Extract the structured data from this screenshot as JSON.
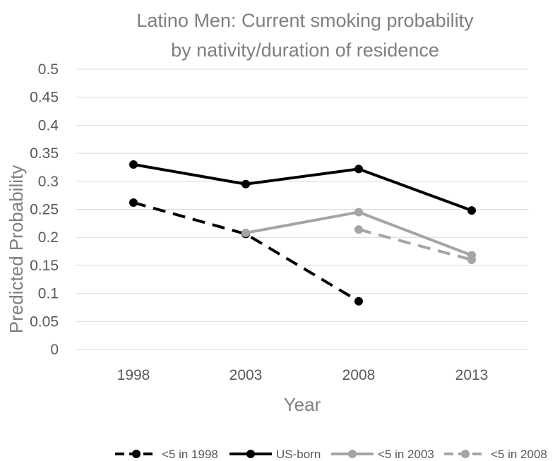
{
  "chart_data": {
    "type": "line",
    "title_line1": "Latino Men: Current smoking probability",
    "title_line2": "by nativity/duration of residence",
    "xlabel": "Year",
    "ylabel": "Predicted Probability",
    "categories": [
      "1998",
      "2003",
      "2008",
      "2013"
    ],
    "y_ticks": [
      "0",
      "0.05",
      "0.1",
      "0.15",
      "0.2",
      "0.25",
      "0.3",
      "0.35",
      "0.4",
      "0.45",
      "0.5"
    ],
    "ylim": [
      0,
      0.5
    ],
    "grid": true,
    "legend_position": "bottom",
    "series": [
      {
        "name": "<5 in 1998",
        "color": "#000000",
        "dash": true,
        "values": [
          0.262,
          0.206,
          0.086,
          null
        ]
      },
      {
        "name": "US-born",
        "color": "#000000",
        "dash": false,
        "values": [
          0.33,
          0.295,
          0.322,
          0.248
        ]
      },
      {
        "name": "<5 in 2003",
        "color": "#a5a5a5",
        "dash": false,
        "values": [
          null,
          0.208,
          0.245,
          0.168
        ]
      },
      {
        "name": "<5 in 2008",
        "color": "#a5a5a5",
        "dash": true,
        "values": [
          null,
          null,
          0.214,
          0.16
        ]
      }
    ]
  }
}
